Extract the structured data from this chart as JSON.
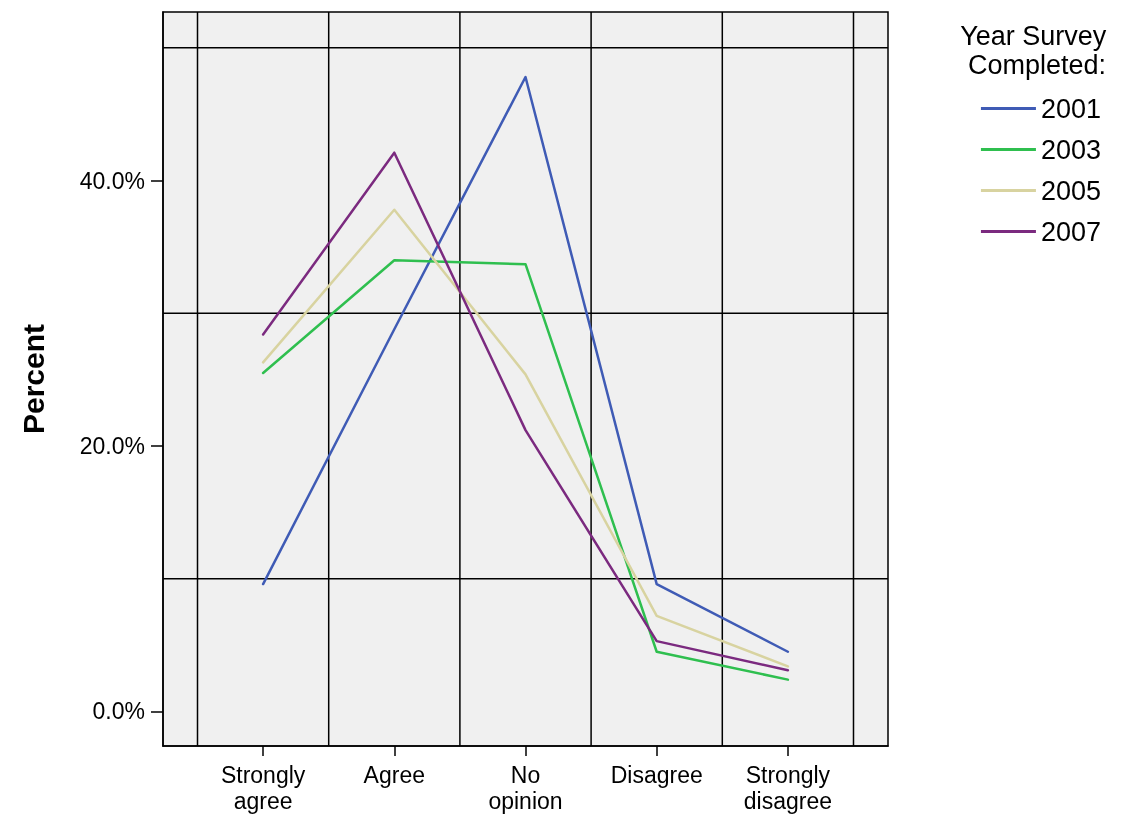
{
  "chart_data": {
    "type": "line",
    "ylabel": "Percent",
    "legend_title": "Year Survey Completed:",
    "categories": [
      "Strongly agree",
      "Agree",
      "No opinion",
      "Disagree",
      "Strongly disagree"
    ],
    "series": [
      {
        "name": "2001",
        "color": "#3f5bb5",
        "values": [
          9.6,
          28.8,
          47.8,
          9.6,
          4.5
        ]
      },
      {
        "name": "2003",
        "color": "#2fbf4f",
        "values": [
          25.5,
          34.0,
          33.7,
          4.5,
          2.4
        ]
      },
      {
        "name": "2005",
        "color": "#d8d3a0",
        "values": [
          26.3,
          37.8,
          25.4,
          7.2,
          3.4
        ]
      },
      {
        "name": "2007",
        "color": "#7b2a7f",
        "values": [
          28.4,
          42.1,
          21.2,
          5.3,
          3.1
        ]
      }
    ],
    "ylim": [
      -2.6,
      52.7
    ],
    "yticks": [
      {
        "value": 0,
        "label": "0.0%"
      },
      {
        "value": 20,
        "label": "20.0%"
      },
      {
        "value": 40,
        "label": "40.0%"
      }
    ],
    "grid": true,
    "legend": "top right",
    "marker": "none",
    "line_style": "solid"
  }
}
